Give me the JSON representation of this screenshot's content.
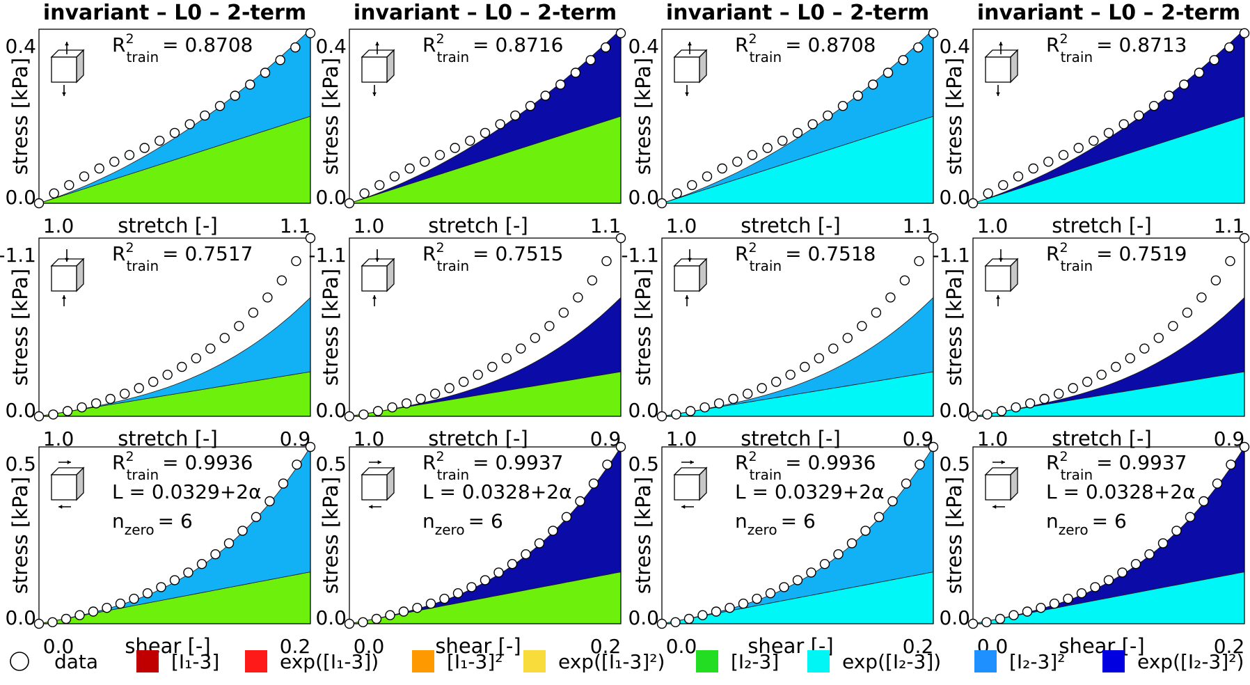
{
  "figure": {
    "legend": [
      {
        "label": "data",
        "type": "circle"
      },
      {
        "label": "[I₁-3]",
        "color": "#c00000"
      },
      {
        "label": "exp([I₁-3])",
        "color": "#ff1a1a"
      },
      {
        "label": "[I₁-3]²",
        "color": "#ff9900"
      },
      {
        "label": "exp([I₁-3]²)",
        "color": "#f7dc3c"
      },
      {
        "label": "[I₂-3]",
        "color": "#22dd22"
      },
      {
        "label": "exp([I₂-3])",
        "color": "#00f5f5"
      },
      {
        "label": "[I₂-3]²",
        "color": "#1e90ff"
      },
      {
        "label": "exp([I₂-3]²)",
        "color": "#0000e0"
      }
    ]
  },
  "chart_data": [
    {
      "type": "area",
      "title": "invariant – L0 – 2-term",
      "xlabel": "stretch [-]",
      "ylabel": "stress [kPa]",
      "x_ticks": [
        "1.0",
        "1.1"
      ],
      "y_ticks": [
        "0.0",
        "0.4"
      ],
      "xlim": [
        1.0,
        1.1
      ],
      "ylim": [
        0,
        0.44
      ],
      "r2_label": "R",
      "r2_sub": "train",
      "r2_value": "= 0.8708",
      "loading": "tension",
      "series": [
        {
          "term": "[I₂-3]",
          "color": "#6cf00c",
          "end": 0.22,
          "shape": "linear"
        },
        {
          "term": "[I₂-3]²",
          "color": "#12b1f5",
          "end": 0.44,
          "shape": "quadratic"
        }
      ],
      "data_points": {
        "x_start": 1.0,
        "x_end": 1.1,
        "values": [
          0.0,
          0.025,
          0.046,
          0.068,
          0.088,
          0.105,
          0.122,
          0.14,
          0.158,
          0.178,
          0.2,
          0.222,
          0.246,
          0.272,
          0.3,
          0.33,
          0.362,
          0.394,
          0.43
        ]
      }
    },
    {
      "type": "area",
      "title": "invariant – L0 – 2-term",
      "xlabel": "stretch [-]",
      "ylabel": "stress [kPa]",
      "x_ticks": [
        "1.0",
        "1.1"
      ],
      "y_ticks": [
        "0.0",
        "0.4"
      ],
      "xlim": [
        1.0,
        1.1
      ],
      "ylim": [
        0,
        0.44
      ],
      "r2_label": "R",
      "r2_sub": "train",
      "r2_value": "= 0.8716",
      "loading": "tension",
      "series": [
        {
          "term": "[I₂-3]",
          "color": "#6cf00c",
          "end": 0.22,
          "shape": "linear"
        },
        {
          "term": "exp([I₂-3]²)",
          "color": "#0b0ba8",
          "end": 0.44,
          "shape": "quadratic"
        }
      ],
      "data_points": {
        "x_start": 1.0,
        "x_end": 1.1,
        "values": [
          0.0,
          0.025,
          0.046,
          0.068,
          0.088,
          0.105,
          0.122,
          0.14,
          0.158,
          0.178,
          0.2,
          0.222,
          0.246,
          0.272,
          0.3,
          0.33,
          0.362,
          0.394,
          0.43
        ]
      }
    },
    {
      "type": "area",
      "title": "invariant – L0 – 2-term",
      "xlabel": "stretch [-]",
      "ylabel": "stress [kPa]",
      "x_ticks": [
        "1.0",
        "1.1"
      ],
      "y_ticks": [
        "0.0",
        "0.4"
      ],
      "xlim": [
        1.0,
        1.1
      ],
      "ylim": [
        0,
        0.44
      ],
      "r2_label": "R",
      "r2_sub": "train",
      "r2_value": "= 0.8708",
      "loading": "tension",
      "series": [
        {
          "term": "exp([I₂-3])",
          "color": "#00f7f7",
          "end": 0.22,
          "shape": "linear"
        },
        {
          "term": "[I₂-3]²",
          "color": "#12b1f5",
          "end": 0.44,
          "shape": "quadratic"
        }
      ],
      "data_points": {
        "x_start": 1.0,
        "x_end": 1.1,
        "values": [
          0.0,
          0.025,
          0.046,
          0.068,
          0.088,
          0.105,
          0.122,
          0.14,
          0.158,
          0.178,
          0.2,
          0.222,
          0.246,
          0.272,
          0.3,
          0.33,
          0.362,
          0.394,
          0.43
        ]
      }
    },
    {
      "type": "area",
      "title": "invariant – L0 – 2-term",
      "xlabel": "stretch [-]",
      "ylabel": "stress [kPa]",
      "x_ticks": [
        "1.0",
        "1.1"
      ],
      "y_ticks": [
        "0.0",
        "0.4"
      ],
      "xlim": [
        1.0,
        1.1
      ],
      "ylim": [
        0,
        0.44
      ],
      "r2_label": "R",
      "r2_sub": "train",
      "r2_value": "= 0.8713",
      "loading": "tension",
      "series": [
        {
          "term": "exp([I₂-3])",
          "color": "#00f7f7",
          "end": 0.22,
          "shape": "linear"
        },
        {
          "term": "exp([I₂-3]²)",
          "color": "#0b0ba8",
          "end": 0.44,
          "shape": "quadratic"
        }
      ],
      "data_points": {
        "x_start": 1.0,
        "x_end": 1.1,
        "values": [
          0.0,
          0.025,
          0.046,
          0.068,
          0.088,
          0.105,
          0.122,
          0.14,
          0.158,
          0.178,
          0.2,
          0.222,
          0.246,
          0.272,
          0.3,
          0.33,
          0.362,
          0.394,
          0.43
        ]
      }
    },
    {
      "type": "area",
      "xlabel": "stretch [-]",
      "ylabel": "stress [kPa]",
      "x_ticks": [
        "1.0",
        "0.9"
      ],
      "y_ticks": [
        "0.0",
        "-1.1"
      ],
      "xlim": [
        1.0,
        0.9
      ],
      "ylim": [
        0,
        -1.2
      ],
      "r2_label": "R",
      "r2_sub": "train",
      "r2_value": "= 0.7517",
      "loading": "compression",
      "series": [
        {
          "term": "[I₂-3]",
          "color": "#6cf00c",
          "end": -0.3,
          "shape": "linear"
        },
        {
          "term": "[I₂-3]²",
          "color": "#12b1f5",
          "end": -0.8,
          "shape": "cubic"
        }
      ],
      "data_points": {
        "x_start": 1.0,
        "x_end": 0.9,
        "values": [
          0.0,
          -0.012,
          -0.035,
          -0.06,
          -0.087,
          -0.117,
          -0.152,
          -0.19,
          -0.232,
          -0.28,
          -0.333,
          -0.391,
          -0.456,
          -0.528,
          -0.608,
          -0.698,
          -0.8,
          -0.915,
          -1.045,
          -1.2
        ]
      }
    },
    {
      "type": "area",
      "xlabel": "stretch [-]",
      "ylabel": "stress [kPa]",
      "x_ticks": [
        "1.0",
        "0.9"
      ],
      "y_ticks": [
        "0.0",
        "-1.1"
      ],
      "xlim": [
        1.0,
        0.9
      ],
      "ylim": [
        0,
        -1.2
      ],
      "r2_label": "R",
      "r2_sub": "train",
      "r2_value": "= 0.7515",
      "loading": "compression",
      "series": [
        {
          "term": "[I₂-3]",
          "color": "#6cf00c",
          "end": -0.3,
          "shape": "linear"
        },
        {
          "term": "exp([I₂-3]²)",
          "color": "#0b0ba8",
          "end": -0.8,
          "shape": "cubic"
        }
      ],
      "data_points": {
        "x_start": 1.0,
        "x_end": 0.9,
        "values": [
          0.0,
          -0.012,
          -0.035,
          -0.06,
          -0.087,
          -0.117,
          -0.152,
          -0.19,
          -0.232,
          -0.28,
          -0.333,
          -0.391,
          -0.456,
          -0.528,
          -0.608,
          -0.698,
          -0.8,
          -0.915,
          -1.045,
          -1.2
        ]
      }
    },
    {
      "type": "area",
      "xlabel": "stretch [-]",
      "ylabel": "stress [kPa]",
      "x_ticks": [
        "1.0",
        "0.9"
      ],
      "y_ticks": [
        "0.0",
        "-1.1"
      ],
      "xlim": [
        1.0,
        0.9
      ],
      "ylim": [
        0,
        -1.2
      ],
      "r2_label": "R",
      "r2_sub": "train",
      "r2_value": "= 0.7518",
      "loading": "compression",
      "series": [
        {
          "term": "exp([I₂-3])",
          "color": "#00f7f7",
          "end": -0.3,
          "shape": "linear"
        },
        {
          "term": "[I₂-3]²",
          "color": "#12b1f5",
          "end": -0.8,
          "shape": "cubic"
        }
      ],
      "data_points": {
        "x_start": 1.0,
        "x_end": 0.9,
        "values": [
          0.0,
          -0.012,
          -0.035,
          -0.06,
          -0.087,
          -0.117,
          -0.152,
          -0.19,
          -0.232,
          -0.28,
          -0.333,
          -0.391,
          -0.456,
          -0.528,
          -0.608,
          -0.698,
          -0.8,
          -0.915,
          -1.045,
          -1.2
        ]
      }
    },
    {
      "type": "area",
      "xlabel": "stretch [-]",
      "ylabel": "stress [kPa]",
      "x_ticks": [
        "1.0",
        "0.9"
      ],
      "y_ticks": [
        "0.0",
        "-1.1"
      ],
      "xlim": [
        1.0,
        0.9
      ],
      "ylim": [
        0,
        -1.2
      ],
      "r2_label": "R",
      "r2_sub": "train",
      "r2_value": "= 0.7519",
      "loading": "compression",
      "series": [
        {
          "term": "exp([I₂-3])",
          "color": "#00f7f7",
          "end": -0.3,
          "shape": "linear"
        },
        {
          "term": "exp([I₂-3]²)",
          "color": "#0b0ba8",
          "end": -0.8,
          "shape": "cubic"
        }
      ],
      "data_points": {
        "x_start": 1.0,
        "x_end": 0.9,
        "values": [
          0.0,
          -0.012,
          -0.035,
          -0.06,
          -0.087,
          -0.117,
          -0.152,
          -0.19,
          -0.232,
          -0.28,
          -0.333,
          -0.391,
          -0.456,
          -0.528,
          -0.608,
          -0.698,
          -0.8,
          -0.915,
          -1.045,
          -1.2
        ]
      }
    },
    {
      "type": "area",
      "xlabel": "shear [-]",
      "ylabel": "stress [kPa]",
      "x_ticks": [
        "0.0",
        "0.2"
      ],
      "y_ticks": [
        "0.0",
        "0.5"
      ],
      "xlim": [
        0,
        0.22
      ],
      "ylim": [
        0,
        0.58
      ],
      "r2_label": "R",
      "r2_sub": "train",
      "r2_value": "= 0.9936",
      "L_value": "L = 0.0329+2α",
      "nzero_label": "n",
      "nzero_sub": "zero",
      "nzero_value": "= 6",
      "loading": "shear",
      "series": [
        {
          "term": "[I₂-3]",
          "color": "#6cf00c",
          "end": 0.17,
          "shape": "linear"
        },
        {
          "term": "[I₂-3]²",
          "color": "#12b1f5",
          "end": 0.58,
          "shape": "cubic"
        }
      ],
      "data_points": {
        "x_start": 0,
        "x_end": 0.22,
        "values": [
          0.0,
          0.005,
          0.016,
          0.028,
          0.04,
          0.052,
          0.066,
          0.082,
          0.1,
          0.12,
          0.143,
          0.168,
          0.196,
          0.228,
          0.264,
          0.305,
          0.35,
          0.402,
          0.46,
          0.522,
          0.58
        ]
      }
    },
    {
      "type": "area",
      "xlabel": "shear [-]",
      "ylabel": "stress [kPa]",
      "x_ticks": [
        "0.0",
        "0.2"
      ],
      "y_ticks": [
        "0.0",
        "0.5"
      ],
      "xlim": [
        0,
        0.22
      ],
      "ylim": [
        0,
        0.58
      ],
      "r2_label": "R",
      "r2_sub": "train",
      "r2_value": "= 0.9937",
      "L_value": "L = 0.0328+2α",
      "nzero_label": "n",
      "nzero_sub": "zero",
      "nzero_value": "= 6",
      "loading": "shear",
      "series": [
        {
          "term": "[I₂-3]",
          "color": "#6cf00c",
          "end": 0.17,
          "shape": "linear"
        },
        {
          "term": "exp([I₂-3]²)",
          "color": "#0b0ba8",
          "end": 0.58,
          "shape": "cubic"
        }
      ],
      "data_points": {
        "x_start": 0,
        "x_end": 0.22,
        "values": [
          0.0,
          0.005,
          0.016,
          0.028,
          0.04,
          0.052,
          0.066,
          0.082,
          0.1,
          0.12,
          0.143,
          0.168,
          0.196,
          0.228,
          0.264,
          0.305,
          0.35,
          0.402,
          0.46,
          0.522,
          0.58
        ]
      }
    },
    {
      "type": "area",
      "xlabel": "shear [-]",
      "ylabel": "stress [kPa]",
      "x_ticks": [
        "0.0",
        "0.2"
      ],
      "y_ticks": [
        "0.0",
        "0.5"
      ],
      "xlim": [
        0,
        0.22
      ],
      "ylim": [
        0,
        0.58
      ],
      "r2_label": "R",
      "r2_sub": "train",
      "r2_value": "= 0.9936",
      "L_value": "L = 0.0329+2α",
      "nzero_label": "n",
      "nzero_sub": "zero",
      "nzero_value": "= 6",
      "loading": "shear",
      "series": [
        {
          "term": "exp([I₂-3])",
          "color": "#00f7f7",
          "end": 0.17,
          "shape": "linear"
        },
        {
          "term": "[I₂-3]²",
          "color": "#12b1f5",
          "end": 0.58,
          "shape": "cubic"
        }
      ],
      "data_points": {
        "x_start": 0,
        "x_end": 0.22,
        "values": [
          0.0,
          0.005,
          0.016,
          0.028,
          0.04,
          0.052,
          0.066,
          0.082,
          0.1,
          0.12,
          0.143,
          0.168,
          0.196,
          0.228,
          0.264,
          0.305,
          0.35,
          0.402,
          0.46,
          0.522,
          0.58
        ]
      }
    },
    {
      "type": "area",
      "xlabel": "shear [-]",
      "ylabel": "stress [kPa]",
      "x_ticks": [
        "0.0",
        "0.2"
      ],
      "y_ticks": [
        "0.0",
        "0.5"
      ],
      "xlim": [
        0,
        0.22
      ],
      "ylim": [
        0,
        0.58
      ],
      "r2_label": "R",
      "r2_sub": "train",
      "r2_value": "= 0.9937",
      "L_value": "L = 0.0328+2α",
      "nzero_label": "n",
      "nzero_sub": "zero",
      "nzero_value": "= 6",
      "loading": "shear",
      "series": [
        {
          "term": "exp([I₂-3])",
          "color": "#00f7f7",
          "end": 0.17,
          "shape": "linear"
        },
        {
          "term": "exp([I₂-3]²)",
          "color": "#0b0ba8",
          "end": 0.58,
          "shape": "cubic"
        }
      ],
      "data_points": {
        "x_start": 0,
        "x_end": 0.22,
        "values": [
          0.0,
          0.005,
          0.016,
          0.028,
          0.04,
          0.052,
          0.066,
          0.082,
          0.1,
          0.12,
          0.143,
          0.168,
          0.196,
          0.228,
          0.264,
          0.305,
          0.35,
          0.402,
          0.46,
          0.522,
          0.58
        ]
      }
    }
  ]
}
